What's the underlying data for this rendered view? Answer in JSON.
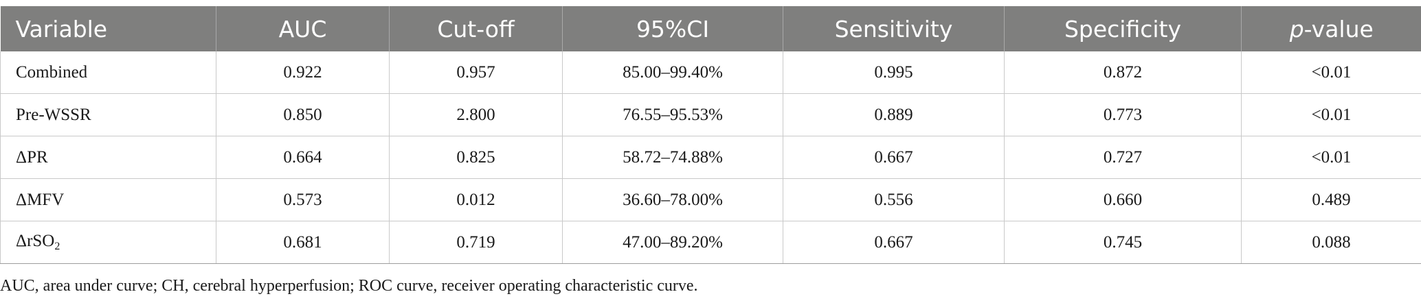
{
  "table": {
    "headers": {
      "variable": "Variable",
      "auc": "AUC",
      "cutoff": "Cut-off",
      "ci": "95%CI",
      "sensitivity": "Sensitivity",
      "specificity": "Specificity",
      "pvalue_italic": "p",
      "pvalue_rest": "-value"
    },
    "rows": [
      {
        "variable": "Combined",
        "auc": "0.922",
        "cutoff": "0.957",
        "ci": "85.00–99.40%",
        "sensitivity": "0.995",
        "specificity": "0.872",
        "pvalue": "<0.01"
      },
      {
        "variable": "Pre-WSSR",
        "auc": "0.850",
        "cutoff": "2.800",
        "ci": "76.55–95.53%",
        "sensitivity": "0.889",
        "specificity": "0.773",
        "pvalue": "<0.01"
      },
      {
        "variable": "ΔPR",
        "auc": "0.664",
        "cutoff": "0.825",
        "ci": "58.72–74.88%",
        "sensitivity": "0.667",
        "specificity": "0.727",
        "pvalue": "<0.01"
      },
      {
        "variable": "ΔMFV",
        "auc": "0.573",
        "cutoff": "0.012",
        "ci": "36.60–78.00%",
        "sensitivity": "0.556",
        "specificity": "0.660",
        "pvalue": "0.489"
      },
      {
        "variable_main": "ΔrSO",
        "variable_sub": "2",
        "auc": "0.681",
        "cutoff": "0.719",
        "ci": "47.00–89.20%",
        "sensitivity": "0.667",
        "specificity": "0.745",
        "pvalue": "0.088"
      }
    ]
  },
  "footnote": "AUC, area under curve; CH, cerebral hyperperfusion; ROC curve, receiver operating characteristic curve."
}
